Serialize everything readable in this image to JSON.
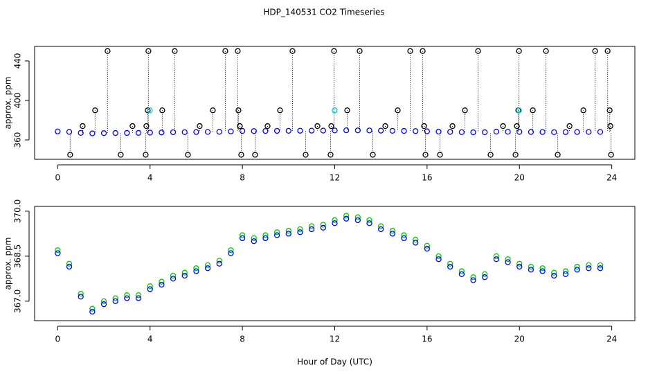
{
  "chart_data": [
    {
      "type": "scatter",
      "title": "HDP_140531  CO2 Timeseries",
      "y_label": "approx. ppm",
      "xlim": [
        -1,
        25
      ],
      "xticks": [
        0,
        4,
        8,
        12,
        16,
        20,
        24
      ],
      "ylim": [
        340.4,
        454.7
      ],
      "yticks": [
        360,
        400,
        440
      ],
      "series": [
        {
          "color": "#0000ff",
          "x": [
            0,
            0.5,
            1,
            1.5,
            2,
            2.5,
            3,
            3.5,
            4,
            4.5,
            5,
            5.5,
            6,
            6.5,
            7,
            7.5,
            8,
            8.5,
            9,
            9.5,
            10,
            10.5,
            11,
            11.5,
            12,
            12.5,
            13,
            13.5,
            14,
            14.5,
            15,
            15.5,
            16,
            16.5,
            17,
            17.5,
            18,
            18.5,
            19,
            19.5,
            20,
            20.5,
            21,
            21.5,
            22,
            22.5,
            23,
            23.5
          ],
          "values": [
            368.6,
            368.15,
            367.15,
            366.65,
            366.9,
            367.0,
            367.1,
            367.1,
            367.4,
            367.55,
            367.75,
            367.85,
            368.0,
            368.1,
            368.25,
            368.6,
            369.1,
            369.0,
            369.1,
            369.2,
            369.25,
            369.3,
            369.4,
            369.45,
            369.6,
            369.75,
            369.7,
            369.6,
            369.4,
            369.25,
            369.1,
            368.95,
            368.75,
            368.4,
            368.15,
            367.9,
            367.7,
            367.8,
            368.4,
            368.3,
            368.15,
            368.05,
            368.0,
            367.85,
            367.9,
            368.05,
            368.1,
            368.1
          ]
        },
        {
          "color": "#000000",
          "drop_lines": true,
          "x": [
            0.54,
            1.08,
            1.62,
            2.16,
            2.73,
            3.24,
            3.81,
            3.84,
            3.9,
            3.93,
            4.53,
            5.07,
            5.64,
            6.15,
            6.72,
            7.26,
            7.8,
            7.83,
            7.89,
            7.95,
            8.55,
            9.09,
            9.63,
            10.17,
            10.74,
            11.25,
            11.82,
            11.85,
            11.97,
            12.54,
            13.08,
            13.65,
            14.19,
            14.73,
            15.27,
            15.81,
            15.87,
            15.93,
            16.56,
            17.1,
            17.64,
            18.21,
            18.75,
            19.29,
            19.83,
            19.89,
            19.95,
            19.98,
            20.58,
            21.15,
            21.66,
            22.17,
            22.77,
            23.28,
            23.82,
            23.91,
            23.94,
            23.97
          ],
          "values": [
            345,
            374,
            390,
            450,
            345,
            374,
            345,
            374,
            390,
            450,
            390,
            450,
            345,
            374,
            390,
            450,
            450,
            390,
            374,
            345,
            345,
            374,
            390,
            450,
            345,
            374,
            345,
            374,
            450,
            390,
            450,
            345,
            374,
            390,
            450,
            450,
            374,
            345,
            345,
            374,
            390,
            450,
            345,
            374,
            345,
            374,
            390,
            450,
            390,
            450,
            345,
            374,
            390,
            450,
            450,
            390,
            374,
            345
          ]
        },
        {
          "color": "#00cccc",
          "x": [
            3.99,
            12.0,
            19.98
          ],
          "values": [
            390,
            390,
            390
          ]
        }
      ]
    },
    {
      "type": "scatter",
      "y_label": "approx. ppm",
      "x_label": "Hour of Day (UTC)",
      "xlim": [
        -1,
        25
      ],
      "xticks": [
        0,
        4,
        8,
        12,
        16,
        20,
        24
      ],
      "ylim": [
        366.35,
        370.16
      ],
      "yticks": [
        {
          "value": 367,
          "label": "367.0"
        },
        368.5,
        {
          "value": 370,
          "label": "370.0"
        }
      ],
      "series": [
        {
          "color": "#00cc00",
          "x": [
            0,
            0.5,
            1,
            1.5,
            2,
            2.5,
            3,
            3.5,
            4,
            4.5,
            5,
            5.5,
            6,
            6.5,
            7,
            7.5,
            8,
            8.5,
            9,
            9.5,
            10,
            10.5,
            11,
            11.5,
            12,
            12.5,
            13,
            13.5,
            14,
            14.5,
            15,
            15.5,
            16,
            16.5,
            17,
            17.5,
            18,
            18.5,
            19,
            19.5,
            20,
            20.5,
            21,
            21.5,
            22,
            22.5,
            23,
            23.5
          ],
          "values": [
            368.7,
            368.25,
            367.25,
            366.75,
            367.0,
            367.1,
            367.2,
            367.2,
            367.5,
            367.65,
            367.85,
            367.95,
            368.1,
            368.2,
            368.35,
            368.7,
            369.2,
            369.1,
            369.2,
            369.3,
            369.35,
            369.4,
            369.5,
            369.55,
            369.7,
            369.85,
            369.8,
            369.7,
            369.5,
            369.35,
            369.2,
            369.05,
            368.85,
            368.5,
            368.25,
            368.0,
            367.8,
            367.9,
            368.5,
            368.4,
            368.25,
            368.15,
            368.1,
            367.95,
            368.0,
            368.15,
            368.2,
            368.2
          ]
        },
        {
          "color": "#0000ff",
          "x": [
            0,
            0.5,
            1,
            1.5,
            2,
            2.5,
            3,
            3.5,
            4,
            4.5,
            5,
            5.5,
            6,
            6.5,
            7,
            7.5,
            8,
            8.5,
            9,
            9.5,
            10,
            10.5,
            11,
            11.5,
            12,
            12.5,
            13,
            13.5,
            14,
            14.5,
            15,
            15.5,
            16,
            16.5,
            17,
            17.5,
            18,
            18.5,
            19,
            19.5,
            20,
            20.5,
            21,
            21.5,
            22,
            22.5,
            23,
            23.5
          ],
          "values": [
            368.6,
            368.15,
            367.15,
            366.65,
            366.9,
            367.0,
            367.1,
            367.1,
            367.4,
            367.55,
            367.75,
            367.85,
            368.0,
            368.1,
            368.25,
            368.6,
            369.1,
            369.0,
            369.1,
            369.2,
            369.25,
            369.3,
            369.4,
            369.45,
            369.6,
            369.75,
            369.7,
            369.6,
            369.4,
            369.25,
            369.1,
            368.95,
            368.75,
            368.4,
            368.15,
            367.9,
            367.7,
            367.8,
            368.4,
            368.3,
            368.15,
            368.05,
            368.0,
            367.85,
            367.9,
            368.05,
            368.1,
            368.1
          ]
        }
      ]
    }
  ]
}
